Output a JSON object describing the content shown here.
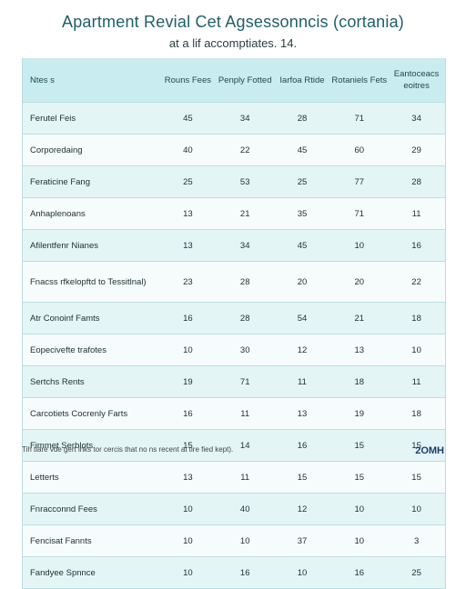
{
  "title": "Apartment Revial Cet Agsessonncis (cortania)",
  "subtitle": "at a lif accomptiates. 14.",
  "table": {
    "headers": [
      "Ntes s",
      "Rouns Fees",
      "Penply Fotted",
      "Iarfoa Rtide",
      "Rotaniels Fets",
      "Eantoceacs eoitres"
    ],
    "rows": [
      [
        "Ferutel Feis",
        "45",
        "34",
        "28",
        "71",
        "34"
      ],
      [
        "Corporedaing",
        "40",
        "22",
        "45",
        "60",
        "29"
      ],
      [
        "Feraticine Fang",
        "25",
        "53",
        "25",
        "77",
        "28"
      ],
      [
        "Anhaplenoans",
        "13",
        "21",
        "35",
        "71",
        "11"
      ],
      [
        "Afilentfenr Nianes",
        "13",
        "34",
        "45",
        "10",
        "16"
      ],
      [
        "Fnacss rfkelopftd to Tessitlnal)",
        "23",
        "28",
        "20",
        "20",
        "22"
      ],
      [
        "Atr Conoinf Famts",
        "16",
        "28",
        "54",
        "21",
        "18"
      ],
      [
        "Eopecivefte trafotes",
        "10",
        "30",
        "12",
        "13",
        "10"
      ],
      [
        "Sertchs Rents",
        "19",
        "71",
        "11",
        "18",
        "11"
      ],
      [
        "Carcotiets Cocrenly Farts",
        "16",
        "11",
        "13",
        "19",
        "18"
      ],
      [
        "Fimmet Serblots",
        "15",
        "14",
        "16",
        "15",
        "15"
      ],
      [
        "Letterts",
        "13",
        "11",
        "15",
        "15",
        "15"
      ],
      [
        "Fnracconnd Fees",
        "10",
        "40",
        "12",
        "10",
        "10"
      ],
      [
        "Fencisat Fannts",
        "10",
        "10",
        "37",
        "10",
        "3"
      ],
      [
        "Fandyee Spnnce",
        "10",
        "16",
        "10",
        "16",
        "25"
      ]
    ]
  },
  "footer": "Tih tiare vde gert inks tor cercis that no ns recent at tire fied kept).",
  "brand": "2OMH"
}
